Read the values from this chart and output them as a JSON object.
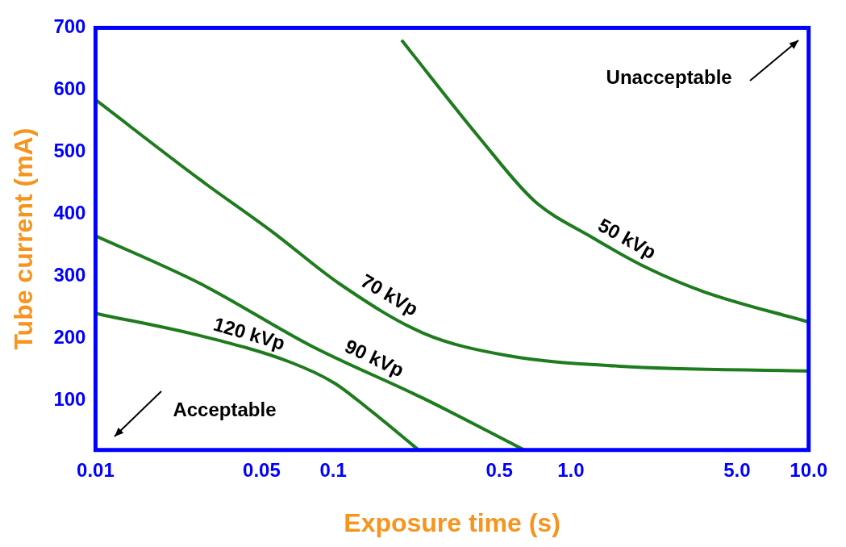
{
  "chart_data": {
    "type": "line",
    "xlabel": "Exposure time (s)",
    "ylabel": "Tube current (mA)",
    "log": "x",
    "xlim": [
      0.01,
      10
    ],
    "xticks": [
      0.01,
      0.05,
      0.1,
      0.5,
      {
        "value": 1,
        "label": "1.0"
      },
      {
        "value": 5,
        "label": "5.0"
      },
      {
        "value": 10,
        "label": "10.0"
      }
    ],
    "ylim": [
      20,
      700
    ],
    "yticks": [
      100,
      200,
      300,
      400,
      500,
      600,
      700
    ],
    "grid": false,
    "legend": false,
    "marker": "none",
    "line_style": "solid",
    "annotations": [
      "Unacceptable",
      "Acceptable"
    ],
    "series": [
      {
        "name": "50 kVp",
        "color": "#1e7b1e",
        "x": [
          0.194,
          0.414,
          0.703,
          1.22,
          2.1,
          3.62,
          10
        ],
        "values": [
          680,
          522,
          421,
          363,
          313,
          275,
          226
        ]
      },
      {
        "name": "70 kVp",
        "color": "#1e7b1e",
        "x": [
          0.01,
          0.0276,
          0.0556,
          0.106,
          0.24,
          0.541,
          1.61,
          10
        ],
        "values": [
          584,
          455,
          371,
          288,
          208,
          172,
          155,
          147
        ]
      },
      {
        "name": "90 kVp",
        "color": "#1e7b1e",
        "x": [
          0.01,
          0.0276,
          0.0814,
          0.24,
          0.637
        ],
        "values": [
          365,
          288,
          187,
          103,
          20
        ]
      },
      {
        "name": "120 kVp",
        "color": "#1e7b1e",
        "x": [
          0.01,
          0.0276,
          0.0654,
          0.101,
          0.14,
          0.229
        ],
        "values": [
          240,
          204,
          162,
          128,
          87,
          20
        ]
      }
    ]
  }
}
